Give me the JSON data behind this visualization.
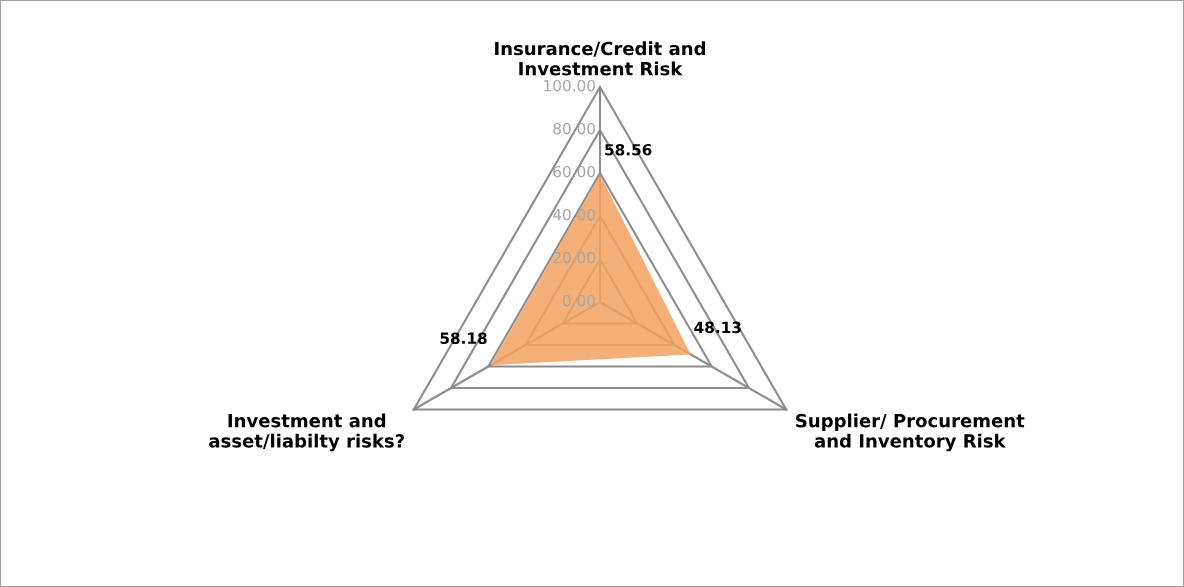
{
  "chart_data": {
    "type": "radar",
    "categories": [
      "Insurance/Credit and\nInvestment Risk",
      "Supplier/ Procurement\nand Inventory Risk",
      "Investment and\nasset/liabilty risks?"
    ],
    "series": [
      {
        "color": "#f4a261",
        "values": [
          58.56,
          48.13,
          58.18
        ]
      }
    ],
    "ylim": [
      0,
      100
    ],
    "yticks": [
      {
        "value": 0,
        "label": "0.00"
      },
      {
        "value": 20,
        "label": "20.00"
      },
      {
        "value": 40,
        "label": "40.00"
      },
      {
        "value": 60,
        "label": "60.00"
      },
      {
        "value": 80,
        "label": "80.00"
      },
      {
        "value": 100,
        "label": "100.00"
      }
    ],
    "data_labels": true
  }
}
